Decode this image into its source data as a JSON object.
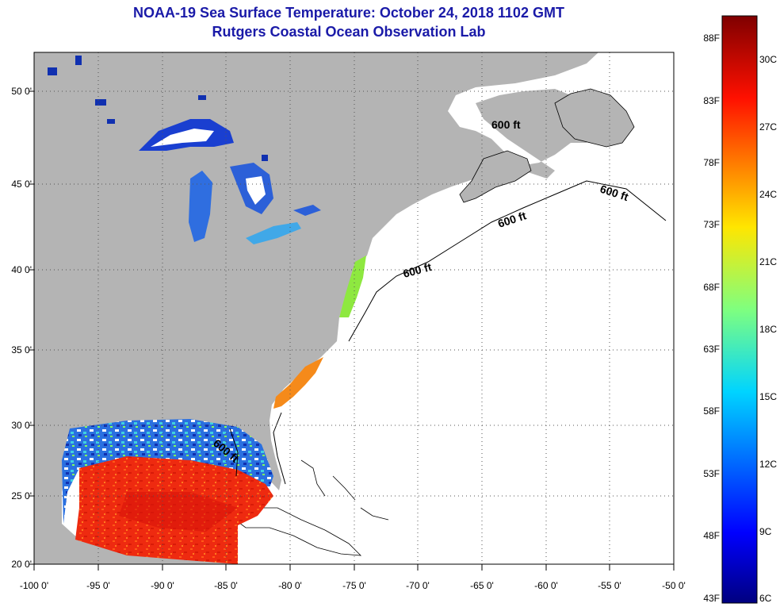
{
  "header": {
    "title": "NOAA-19 Sea Surface Temperature:  October 24, 2018 1102 GMT",
    "subtitle": "Rutgers Coastal Ocean Observation Lab"
  },
  "map": {
    "lat_ticks": [
      "50 0'",
      "45 0'",
      "40 0'",
      "35 0'",
      "30 0'",
      "25 0'",
      "20 0'"
    ],
    "lon_ticks": [
      "-100 0'",
      "-95 0'",
      "-90 0'",
      "-85 0'",
      "-80 0'",
      "-75 0'",
      "-70 0'",
      "-65 0'",
      "-60 0'",
      "-55 0'",
      "-50 0'"
    ],
    "contour_label": "600 ft",
    "colors": {
      "land": "#b4b4b4",
      "ocean": "#ffffff",
      "grid": "#555555"
    }
  },
  "colorbar": {
    "fahrenheit_labels": [
      "88F",
      "83F",
      "78F",
      "73F",
      "68F",
      "63F",
      "58F",
      "53F",
      "48F",
      "43F"
    ],
    "celsius_labels": [
      "30C",
      "27C",
      "24C",
      "21C",
      "18C",
      "15C",
      "12C",
      "9C",
      "6C"
    ]
  }
}
